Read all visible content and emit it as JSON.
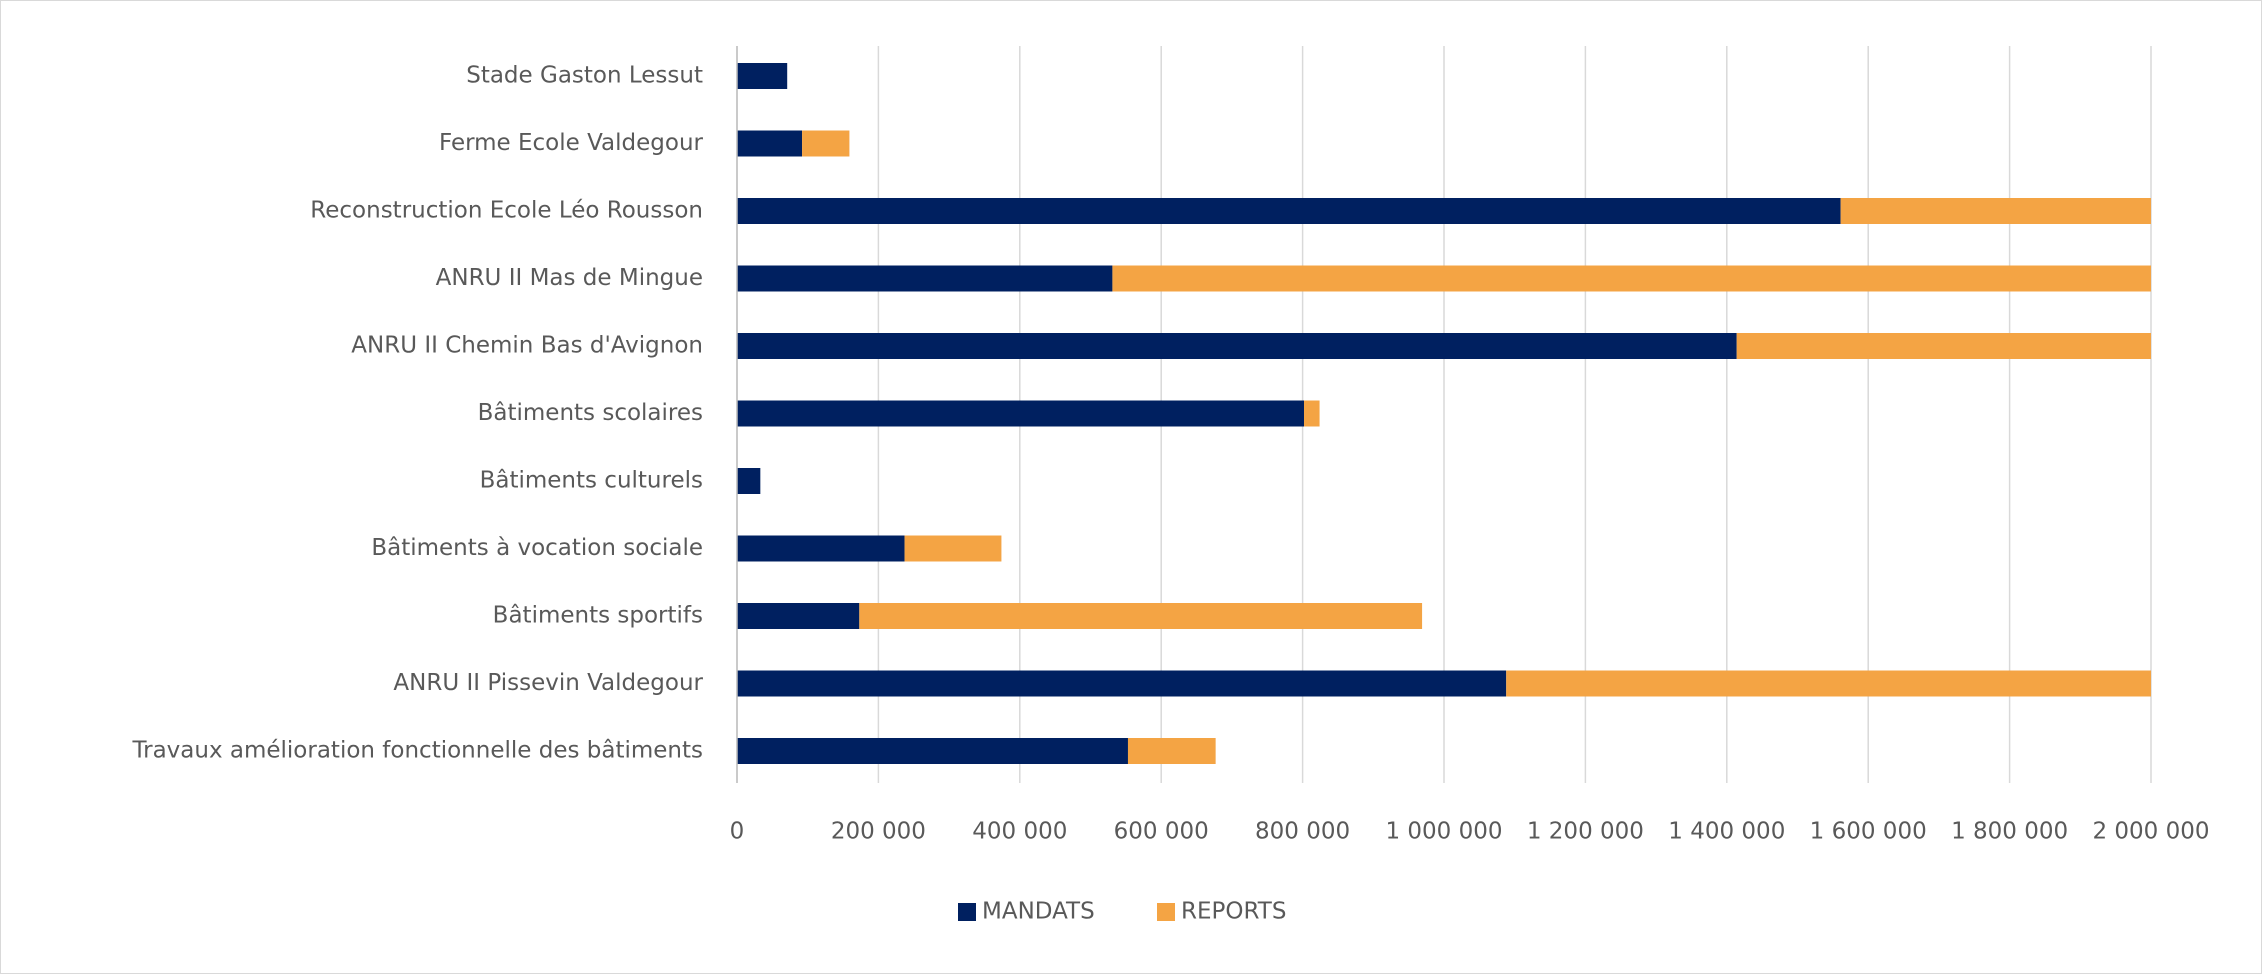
{
  "chart_data": {
    "type": "stacked-barh",
    "categories": [
      "Stade Gaston Lessut",
      "Ferme Ecole Valdegour",
      "Reconstruction Ecole Léo Rousson",
      "ANRU II Mas de Mingue",
      "ANRU II Chemin Bas d'Avignon",
      "Bâtiments scolaires",
      "Bâtiments culturels",
      "Bâtiments à vocation sociale",
      "Bâtiments sportifs",
      "ANRU II Pissevin Valdegour",
      "Travaux amélioration fonctionnelle des bâtiments"
    ],
    "series": [
      {
        "name": "MANDATS",
        "color": "#002060",
        "values": [
          71000,
          92000,
          1561000,
          531000,
          1414000,
          802000,
          33000,
          237000,
          173000,
          1088000,
          553000
        ]
      },
      {
        "name": "REPORTS",
        "color": "#f4a444",
        "values": [
          0,
          67000,
          439000,
          1469000,
          586000,
          22000,
          0,
          137000,
          796000,
          912000,
          124000
        ]
      }
    ],
    "xlim": [
      0,
      2000000
    ],
    "xticks": [
      0,
      {
        "value": 200000,
        "label": "200 000"
      },
      {
        "value": 400000,
        "label": "400 000"
      },
      {
        "value": 600000,
        "label": "600 000"
      },
      {
        "value": 800000,
        "label": "800 000"
      },
      {
        "value": 1000000,
        "label": "1 000 000"
      },
      {
        "value": 1200000,
        "label": "1 200 000"
      },
      {
        "value": 1400000,
        "label": "1 400 000"
      },
      {
        "value": 1600000,
        "label": "1 600 000"
      },
      {
        "value": 1800000,
        "label": "1 800 000"
      },
      {
        "value": 2000000,
        "label": "2 000 000"
      }
    ],
    "grid": true,
    "legend": "bottom"
  }
}
